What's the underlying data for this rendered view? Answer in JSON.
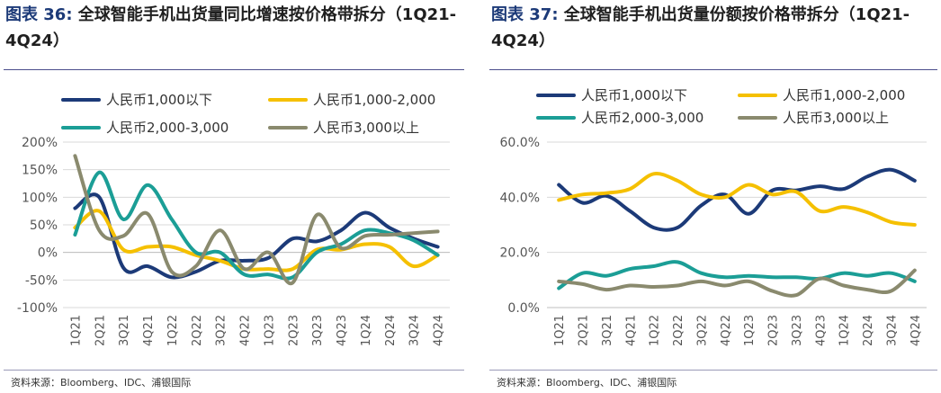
{
  "charts": [
    {
      "fig_label": "图表 36:",
      "title_text": "全球智能手机出货量同比增速按价格带拆分（1Q21-4Q24）",
      "source": "资料来源：Bloomberg、IDC、浦银国际"
    },
    {
      "fig_label": "图表 37:",
      "title_text": "全球智能手机出货量份额按价格带拆分（1Q21-4Q24）",
      "source": "资料来源：Bloomberg、IDC、浦银国际"
    }
  ],
  "chart_data": [
    {
      "type": "line",
      "title": "全球智能手机出货量同比增速按价格带拆分（1Q21-4Q24）",
      "categories": [
        "1Q21",
        "2Q21",
        "3Q21",
        "4Q21",
        "1Q22",
        "2Q22",
        "3Q22",
        "4Q22",
        "1Q23",
        "2Q23",
        "3Q23",
        "4Q23",
        "1Q24",
        "2Q24",
        "3Q24",
        "4Q24"
      ],
      "ylim": [
        -100,
        200
      ],
      "yticks": [
        -100,
        -50,
        0,
        50,
        100,
        150,
        200
      ],
      "ytick_labels": [
        "-100%",
        "-50%",
        "0%",
        "50%",
        "100%",
        "150%",
        "200%"
      ],
      "grid": true,
      "legend_position": "top",
      "series": [
        {
          "name": "人民币1,000以下",
          "color": "#1c3a78",
          "values": [
            80,
            100,
            -28,
            -25,
            -45,
            -35,
            -15,
            -15,
            -10,
            25,
            20,
            40,
            72,
            45,
            25,
            10
          ]
        },
        {
          "name": "人民币1,000-2,000",
          "color": "#f5c000",
          "values": [
            45,
            75,
            5,
            10,
            10,
            -5,
            -15,
            -30,
            -30,
            -30,
            5,
            5,
            15,
            10,
            -25,
            -5
          ]
        },
        {
          "name": "人民币2,000-3,000",
          "color": "#1b9e96",
          "values": [
            32,
            145,
            60,
            122,
            60,
            0,
            0,
            -40,
            -40,
            -45,
            0,
            15,
            40,
            35,
            22,
            -5
          ]
        },
        {
          "name": "人民币3,000以上",
          "color": "#8a8a6e",
          "values": [
            175,
            40,
            30,
            70,
            -35,
            -25,
            40,
            -30,
            0,
            -55,
            68,
            8,
            30,
            32,
            35,
            38
          ]
        }
      ]
    },
    {
      "type": "line",
      "title": "全球智能手机出货量份额按价格带拆分（1Q21-4Q24）",
      "categories": [
        "1Q21",
        "2Q21",
        "3Q21",
        "4Q21",
        "1Q22",
        "2Q22",
        "3Q22",
        "4Q22",
        "1Q23",
        "2Q23",
        "3Q23",
        "4Q23",
        "1Q24",
        "2Q24",
        "3Q24",
        "4Q24"
      ],
      "ylim": [
        0,
        60
      ],
      "yticks": [
        0,
        20,
        40,
        60
      ],
      "ytick_labels": [
        "0.0%",
        "20.0%",
        "40.0%",
        "60.0%"
      ],
      "grid": true,
      "legend_position": "top",
      "series": [
        {
          "name": "人民币1,000以下",
          "color": "#1c3a78",
          "values": [
            44.5,
            38,
            40.5,
            35,
            29,
            29,
            37,
            41,
            34,
            42.5,
            42.5,
            44,
            43,
            47.5,
            50,
            46
          ]
        },
        {
          "name": "人民币1,000-2,000",
          "color": "#f5c000",
          "values": [
            39,
            41,
            41.5,
            43,
            48.5,
            46,
            41,
            40,
            44.5,
            41,
            42,
            35,
            36.5,
            34.5,
            31,
            30
          ]
        },
        {
          "name": "人民币2,000-3,000",
          "color": "#1b9e96",
          "values": [
            7,
            12.5,
            11.5,
            14,
            15,
            16.5,
            12.5,
            11,
            11.5,
            11,
            11,
            10.5,
            12.5,
            11.5,
            12.5,
            9.5
          ]
        },
        {
          "name": "人民币3,000以上",
          "color": "#8a8a6e",
          "values": [
            9.5,
            8.5,
            6.5,
            8,
            7.5,
            8,
            9.5,
            8,
            9.5,
            6,
            4.5,
            10.5,
            8,
            6.5,
            6,
            13.5
          ]
        }
      ]
    }
  ]
}
